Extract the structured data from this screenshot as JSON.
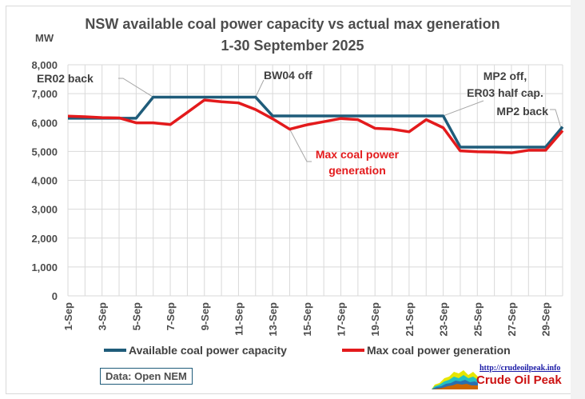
{
  "chart_data": {
    "type": "line",
    "title": "NSW available coal power capacity vs actual max generation",
    "subtitle": "1-30 September 2025",
    "xlabel": "",
    "ylabel": "MW",
    "ylim": [
      0,
      8000
    ],
    "yticks": [
      0,
      1000,
      2000,
      3000,
      4000,
      5000,
      6000,
      7000,
      8000
    ],
    "ytick_labels": [
      "0",
      "1,000",
      "2,000",
      "3,000",
      "4,000",
      "5,000",
      "6,000",
      "7,000",
      "8,000"
    ],
    "grid": true,
    "x": [
      "1-Sep",
      "2-Sep",
      "3-Sep",
      "4-Sep",
      "5-Sep",
      "6-Sep",
      "7-Sep",
      "8-Sep",
      "9-Sep",
      "10-Sep",
      "11-Sep",
      "12-Sep",
      "13-Sep",
      "14-Sep",
      "15-Sep",
      "16-Sep",
      "17-Sep",
      "18-Sep",
      "19-Sep",
      "20-Sep",
      "21-Sep",
      "22-Sep",
      "23-Sep",
      "24-Sep",
      "25-Sep",
      "26-Sep",
      "27-Sep",
      "28-Sep",
      "29-Sep",
      "30-Sep"
    ],
    "xtick_labels": [
      "1-Sep",
      "3-Sep",
      "5-Sep",
      "7-Sep",
      "9-Sep",
      "11-Sep",
      "13-Sep",
      "15-Sep",
      "17-Sep",
      "19-Sep",
      "21-Sep",
      "23-Sep",
      "25-Sep",
      "27-Sep",
      "29-Sep"
    ],
    "series": [
      {
        "name": "Available coal power capacity",
        "color": "#1f5c7a",
        "values": [
          6150,
          6150,
          6150,
          6150,
          6150,
          6880,
          6880,
          6880,
          6880,
          6880,
          6880,
          6880,
          6230,
          6230,
          6230,
          6230,
          6230,
          6230,
          6230,
          6230,
          6230,
          6230,
          6230,
          5150,
          5150,
          5150,
          5150,
          5150,
          5150,
          5850
        ]
      },
      {
        "name": "Max coal power generation",
        "color": "#e31a1c",
        "values": [
          6220,
          6200,
          6170,
          6160,
          5990,
          5990,
          5930,
          6350,
          6780,
          6720,
          6680,
          6450,
          6130,
          5770,
          5920,
          6030,
          6140,
          6100,
          5800,
          5770,
          5680,
          6100,
          5820,
          5020,
          4990,
          4980,
          4950,
          5040,
          5040,
          5720
        ]
      }
    ],
    "legend": "bottom",
    "annotations": [
      {
        "text": "ER02 back",
        "x": "6-Sep",
        "color": "#404040"
      },
      {
        "text": "BW04 off",
        "x": "12-Sep",
        "color": "#404040"
      },
      {
        "text": "MP2 off,",
        "x": "23-Sep",
        "color": "#404040"
      },
      {
        "text": "ER03 half cap.",
        "x": "23-Sep",
        "color": "#404040"
      },
      {
        "text": "MP2 back",
        "x": "30-Sep",
        "color": "#404040"
      },
      {
        "text": "Max coal power",
        "x": "14-Sep",
        "color": "#e31a1c"
      },
      {
        "text": "generation",
        "x": "14-Sep",
        "color": "#e31a1c"
      }
    ]
  },
  "footer": {
    "source": "Data: Open NEM",
    "logo_url_text": "http://crudeoilpeak.info",
    "logo_name": "Crude Oil Peak"
  }
}
